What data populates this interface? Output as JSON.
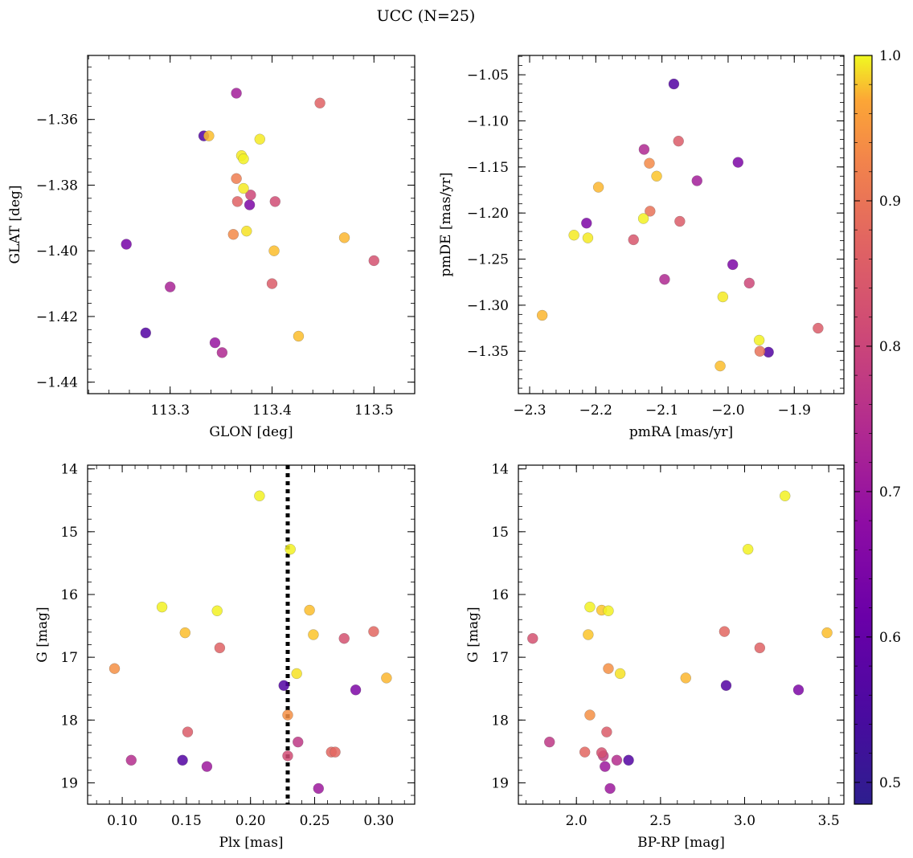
{
  "figure": {
    "title": "UCC (N=25)",
    "colormap": "plasma",
    "colorbar": {
      "range": [
        0.485,
        1.0
      ],
      "ticks": [
        0.5,
        0.6,
        0.7,
        0.8,
        0.9,
        1.0
      ],
      "tick_labels": [
        "0.5",
        "0.6",
        "0.7",
        "0.8",
        "0.9",
        "1.0"
      ]
    }
  },
  "chart_data": [
    {
      "id": "glon-glat",
      "type": "scatter",
      "xlabel": "GLON [deg]",
      "ylabel": "GLAT [deg]",
      "xlim": [
        113.219,
        113.54
      ],
      "ylim": [
        -1.4435,
        -1.3405
      ],
      "xticks": [
        113.3,
        113.4,
        113.5
      ],
      "xtick_labels": [
        "113.3",
        "113.4",
        "113.5"
      ],
      "yticks": [
        -1.36,
        -1.38,
        -1.4,
        -1.42,
        -1.44
      ],
      "ytick_labels": [
        "−1.36",
        "−1.38",
        "−1.40",
        "−1.42",
        "−1.44"
      ],
      "y_inverted": false,
      "points": [
        {
          "x": 113.365,
          "y": -1.352,
          "c": 0.64
        },
        {
          "x": 113.447,
          "y": -1.355,
          "c": 0.77
        },
        {
          "x": 113.333,
          "y": -1.365,
          "c": 0.52
        },
        {
          "x": 113.338,
          "y": -1.365,
          "c": 0.92
        },
        {
          "x": 113.388,
          "y": -1.366,
          "c": 0.98
        },
        {
          "x": 113.37,
          "y": -1.371,
          "c": 0.98
        },
        {
          "x": 113.372,
          "y": -1.372,
          "c": 0.99
        },
        {
          "x": 113.365,
          "y": -1.378,
          "c": 0.82
        },
        {
          "x": 113.372,
          "y": -1.381,
          "c": 0.98
        },
        {
          "x": 113.379,
          "y": -1.383,
          "c": 0.72
        },
        {
          "x": 113.366,
          "y": -1.385,
          "c": 0.77
        },
        {
          "x": 113.378,
          "y": -1.386,
          "c": 0.58
        },
        {
          "x": 113.403,
          "y": -1.385,
          "c": 0.73
        },
        {
          "x": 113.375,
          "y": -1.394,
          "c": 0.97
        },
        {
          "x": 113.362,
          "y": -1.395,
          "c": 0.84
        },
        {
          "x": 113.471,
          "y": -1.396,
          "c": 0.91
        },
        {
          "x": 113.257,
          "y": -1.398,
          "c": 0.57
        },
        {
          "x": 113.402,
          "y": -1.4,
          "c": 0.92
        },
        {
          "x": 113.5,
          "y": -1.403,
          "c": 0.74
        },
        {
          "x": 113.3,
          "y": -1.411,
          "c": 0.65
        },
        {
          "x": 113.4,
          "y": -1.41,
          "c": 0.76
        },
        {
          "x": 113.276,
          "y": -1.425,
          "c": 0.52
        },
        {
          "x": 113.426,
          "y": -1.426,
          "c": 0.92
        },
        {
          "x": 113.344,
          "y": -1.428,
          "c": 0.62
        },
        {
          "x": 113.351,
          "y": -1.431,
          "c": 0.66
        }
      ]
    },
    {
      "id": "pmra-pmde",
      "type": "scatter",
      "xlabel": "pmRA [mas/yr]",
      "ylabel": "pmDE [mas/yr]",
      "xlim": [
        -2.317,
        -1.825
      ],
      "ylim": [
        -1.396,
        -1.029
      ],
      "xticks": [
        -2.3,
        -2.2,
        -2.1,
        -2.0,
        -1.9
      ],
      "xtick_labels": [
        "−2.3",
        "−2.2",
        "−2.1",
        "−2.0",
        "−1.9"
      ],
      "yticks": [
        -1.05,
        -1.1,
        -1.15,
        -1.2,
        -1.25,
        -1.3,
        -1.35
      ],
      "ytick_labels": [
        "−1.05",
        "−1.10",
        "−1.15",
        "−1.20",
        "−1.25",
        "−1.30",
        "−1.35"
      ],
      "y_inverted": false,
      "points": [
        {
          "x": -2.082,
          "y": -1.06,
          "c": 0.52
        },
        {
          "x": -2.127,
          "y": -1.131,
          "c": 0.66
        },
        {
          "x": -2.075,
          "y": -1.122,
          "c": 0.76
        },
        {
          "x": -1.985,
          "y": -1.145,
          "c": 0.58
        },
        {
          "x": -2.119,
          "y": -1.146,
          "c": 0.84
        },
        {
          "x": -2.108,
          "y": -1.16,
          "c": 0.93
        },
        {
          "x": -2.047,
          "y": -1.165,
          "c": 0.64
        },
        {
          "x": -2.196,
          "y": -1.172,
          "c": 0.91
        },
        {
          "x": -2.118,
          "y": -1.198,
          "c": 0.8
        },
        {
          "x": -2.128,
          "y": -1.206,
          "c": 0.99
        },
        {
          "x": -2.073,
          "y": -1.209,
          "c": 0.76
        },
        {
          "x": -2.214,
          "y": -1.211,
          "c": 0.58
        },
        {
          "x": -2.233,
          "y": -1.224,
          "c": 0.98
        },
        {
          "x": -2.212,
          "y": -1.227,
          "c": 0.98
        },
        {
          "x": -2.143,
          "y": -1.229,
          "c": 0.75
        },
        {
          "x": -1.993,
          "y": -1.256,
          "c": 0.58
        },
        {
          "x": -2.096,
          "y": -1.272,
          "c": 0.66
        },
        {
          "x": -1.968,
          "y": -1.276,
          "c": 0.72
        },
        {
          "x": -2.008,
          "y": -1.291,
          "c": 0.98
        },
        {
          "x": -2.281,
          "y": -1.311,
          "c": 0.91
        },
        {
          "x": -1.864,
          "y": -1.325,
          "c": 0.76
        },
        {
          "x": -1.953,
          "y": -1.338,
          "c": 0.99
        },
        {
          "x": -1.952,
          "y": -1.35,
          "c": 0.8
        },
        {
          "x": -1.939,
          "y": -1.351,
          "c": 0.52
        },
        {
          "x": -2.012,
          "y": -1.366,
          "c": 0.92
        }
      ]
    },
    {
      "id": "plx-g",
      "type": "scatter",
      "xlabel": "Plx [mas]",
      "ylabel": "G [mag]",
      "xlim": [
        0.073,
        0.328
      ],
      "ylim": [
        19.34,
        13.94
      ],
      "xticks": [
        0.1,
        0.15,
        0.2,
        0.25,
        0.3
      ],
      "xtick_labels": [
        "0.10",
        "0.15",
        "0.20",
        "0.25",
        "0.30"
      ],
      "yticks": [
        14,
        15,
        16,
        17,
        18,
        19
      ],
      "ytick_labels": [
        "14",
        "15",
        "16",
        "17",
        "18",
        "19"
      ],
      "y_inverted": true,
      "vline": {
        "x": 0.229,
        "style": "dotted"
      },
      "points": [
        {
          "x": 0.207,
          "y": 14.43,
          "c": 0.99
        },
        {
          "x": 0.231,
          "y": 15.28,
          "c": 0.99
        },
        {
          "x": 0.131,
          "y": 16.2,
          "c": 0.99
        },
        {
          "x": 0.174,
          "y": 16.26,
          "c": 0.99
        },
        {
          "x": 0.246,
          "y": 16.25,
          "c": 0.92
        },
        {
          "x": 0.149,
          "y": 16.61,
          "c": 0.92
        },
        {
          "x": 0.249,
          "y": 16.64,
          "c": 0.93
        },
        {
          "x": 0.296,
          "y": 16.59,
          "c": 0.78
        },
        {
          "x": 0.273,
          "y": 16.7,
          "c": 0.74
        },
        {
          "x": 0.176,
          "y": 16.85,
          "c": 0.77
        },
        {
          "x": 0.094,
          "y": 17.18,
          "c": 0.85
        },
        {
          "x": 0.236,
          "y": 17.26,
          "c": 0.97
        },
        {
          "x": 0.306,
          "y": 17.33,
          "c": 0.91
        },
        {
          "x": 0.226,
          "y": 17.45,
          "c": 0.52
        },
        {
          "x": 0.282,
          "y": 17.52,
          "c": 0.58
        },
        {
          "x": 0.229,
          "y": 17.92,
          "c": 0.85
        },
        {
          "x": 0.151,
          "y": 18.19,
          "c": 0.76
        },
        {
          "x": 0.237,
          "y": 18.35,
          "c": 0.69
        },
        {
          "x": 0.263,
          "y": 18.51,
          "c": 0.78
        },
        {
          "x": 0.266,
          "y": 18.51,
          "c": 0.78
        },
        {
          "x": 0.229,
          "y": 18.57,
          "c": 0.73
        },
        {
          "x": 0.107,
          "y": 18.64,
          "c": 0.67
        },
        {
          "x": 0.147,
          "y": 18.64,
          "c": 0.52
        },
        {
          "x": 0.166,
          "y": 18.74,
          "c": 0.63
        },
        {
          "x": 0.253,
          "y": 19.09,
          "c": 0.63
        }
      ]
    },
    {
      "id": "bprp-g",
      "type": "scatter",
      "xlabel": "BP-RP [mag]",
      "ylabel": "G [mag]",
      "xlim": [
        1.655,
        3.59
      ],
      "ylim": [
        19.34,
        13.94
      ],
      "xticks": [
        2.0,
        2.5,
        3.0,
        3.5
      ],
      "xtick_labels": [
        "2.0",
        "2.5",
        "3.0",
        "3.5"
      ],
      "yticks": [
        14,
        15,
        16,
        17,
        18,
        19
      ],
      "ytick_labels": [
        "14",
        "15",
        "16",
        "17",
        "18",
        "19"
      ],
      "y_inverted": true,
      "points": [
        {
          "x": 3.24,
          "y": 14.43,
          "c": 0.99
        },
        {
          "x": 3.02,
          "y": 15.28,
          "c": 0.99
        },
        {
          "x": 2.08,
          "y": 16.2,
          "c": 0.99
        },
        {
          "x": 2.15,
          "y": 16.25,
          "c": 0.93
        },
        {
          "x": 2.19,
          "y": 16.26,
          "c": 0.99
        },
        {
          "x": 3.49,
          "y": 16.61,
          "c": 0.92
        },
        {
          "x": 2.07,
          "y": 16.64,
          "c": 0.93
        },
        {
          "x": 2.88,
          "y": 16.59,
          "c": 0.78
        },
        {
          "x": 1.74,
          "y": 16.7,
          "c": 0.74
        },
        {
          "x": 3.09,
          "y": 16.85,
          "c": 0.77
        },
        {
          "x": 2.19,
          "y": 17.18,
          "c": 0.85
        },
        {
          "x": 2.26,
          "y": 17.26,
          "c": 0.97
        },
        {
          "x": 2.65,
          "y": 17.33,
          "c": 0.91
        },
        {
          "x": 2.89,
          "y": 17.45,
          "c": 0.52
        },
        {
          "x": 3.32,
          "y": 17.52,
          "c": 0.58
        },
        {
          "x": 2.08,
          "y": 17.92,
          "c": 0.85
        },
        {
          "x": 2.18,
          "y": 18.19,
          "c": 0.76
        },
        {
          "x": 1.84,
          "y": 18.35,
          "c": 0.69
        },
        {
          "x": 2.05,
          "y": 18.51,
          "c": 0.78
        },
        {
          "x": 2.15,
          "y": 18.52,
          "c": 0.74
        },
        {
          "x": 2.16,
          "y": 18.57,
          "c": 0.7
        },
        {
          "x": 2.24,
          "y": 18.64,
          "c": 0.67
        },
        {
          "x": 2.31,
          "y": 18.64,
          "c": 0.52
        },
        {
          "x": 2.17,
          "y": 18.74,
          "c": 0.63
        },
        {
          "x": 2.2,
          "y": 19.09,
          "c": 0.63
        }
      ]
    }
  ]
}
